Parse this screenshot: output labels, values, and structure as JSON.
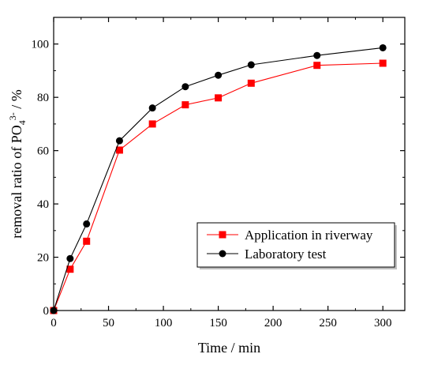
{
  "chart_data": {
    "type": "line",
    "title": "",
    "xlabel": "Time / min",
    "ylabel": {
      "prefix": "removal ratio of PO",
      "subscript": "4",
      "superscript": "3-",
      "suffix": " / %"
    },
    "xlim": [
      0,
      320
    ],
    "ylim": [
      0,
      110
    ],
    "xticks": [
      0,
      50,
      100,
      150,
      200,
      250,
      300
    ],
    "yticks": [
      0,
      20,
      40,
      60,
      80,
      100
    ],
    "grid": false,
    "legend_position": "bottom-right",
    "series": [
      {
        "name": "Application in riverway",
        "color": "#ff0000",
        "marker": "square",
        "x": [
          0,
          15,
          30,
          60,
          90,
          120,
          150,
          180,
          240,
          300
        ],
        "y": [
          0,
          15.5,
          26,
          60.2,
          70,
          77.2,
          79.8,
          85.3,
          92,
          92.8
        ]
      },
      {
        "name": "Laboratory test",
        "color": "#000000",
        "marker": "circle",
        "x": [
          0,
          15,
          30,
          60,
          90,
          120,
          150,
          180,
          240,
          300
        ],
        "y": [
          0,
          19.5,
          32.5,
          63.7,
          76,
          84,
          88.3,
          92.2,
          95.7,
          98.6
        ]
      }
    ]
  }
}
